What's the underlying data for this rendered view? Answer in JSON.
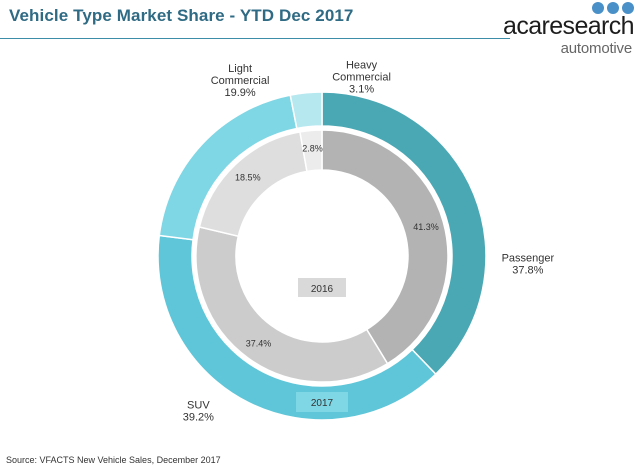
{
  "header": {
    "title": "Vehicle Type Market Share - YTD Dec 2017"
  },
  "logo": {
    "word": "acaresearch",
    "sub": "automotive",
    "icon": "three-dots-logo-mark",
    "dot_color": "#4a90c8"
  },
  "footer": {
    "source": "Source: VFACTS New Vehicle Sales, December 2017"
  },
  "chart_data": {
    "type": "donut",
    "rings": [
      {
        "name": "2017",
        "label": "2017",
        "position": "outer",
        "slices": [
          {
            "category": "Passenger",
            "value": 37.8,
            "label_lines": [
              "Passenger",
              "37.8%"
            ],
            "color": "#4aa8b4"
          },
          {
            "category": "SUV",
            "value": 39.2,
            "label_lines": [
              "SUV",
              "39.2%"
            ],
            "color": "#5ec6d8"
          },
          {
            "category": "Light Commercial",
            "value": 19.9,
            "label_lines": [
              "Light",
              "Commercial",
              "19.9%"
            ],
            "color": "#7fd6e4"
          },
          {
            "category": "Heavy Commercial",
            "value": 3.1,
            "label_lines": [
              "Heavy",
              "Commercial",
              "3.1%"
            ],
            "color": "#b6e8f0"
          }
        ]
      },
      {
        "name": "2016",
        "label": "2016",
        "position": "inner",
        "slices": [
          {
            "category": "Passenger",
            "value": 41.3,
            "label": "41.3%",
            "color": "#b3b3b3"
          },
          {
            "category": "SUV",
            "value": 37.4,
            "label": "37.4%",
            "color": "#cccccc"
          },
          {
            "category": "Light Commercial",
            "value": 18.5,
            "label": "18.5%",
            "color": "#dedede"
          },
          {
            "category": "Heavy Commercial",
            "value": 2.8,
            "label": "2.8%",
            "color": "#ececec"
          }
        ]
      }
    ],
    "ring_label_colors": {
      "2017": "#7fd6e4",
      "2016": "#d9d9d9"
    }
  }
}
